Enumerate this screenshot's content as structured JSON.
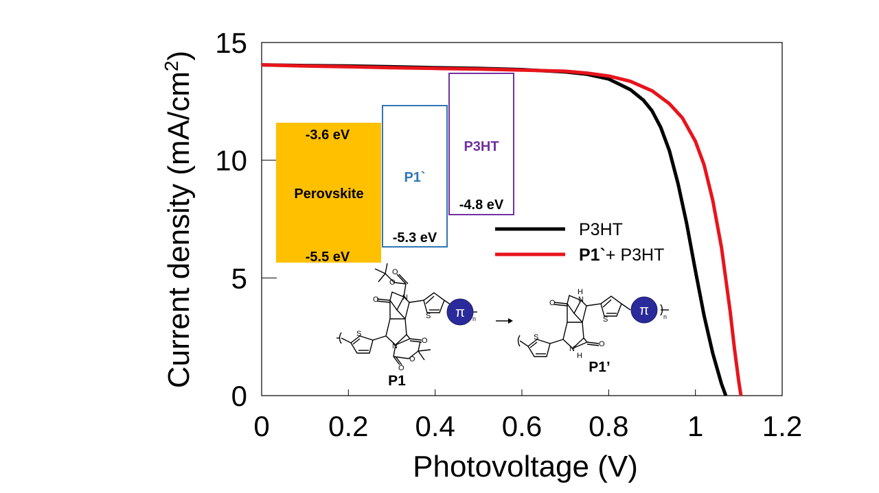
{
  "chart_data": {
    "type": "line",
    "xlabel": "Photovoltage (V)",
    "ylabel_main": "Current density (mA/cm",
    "ylabel_sup": "2",
    "ylabel_close": ")",
    "xlim": [
      0,
      1.2
    ],
    "ylim": [
      0,
      15
    ],
    "x_ticks": [
      0,
      0.2,
      0.4,
      0.6,
      0.8,
      1.0,
      1.2
    ],
    "x_tick_labels": [
      "0",
      "0.2",
      "0.4",
      "0.6",
      "0.8",
      "1",
      "1.2"
    ],
    "y_ticks": [
      0,
      5,
      10,
      15
    ],
    "y_tick_labels": [
      "0",
      "5",
      "10",
      "15"
    ],
    "grid": false,
    "legend_placement": "center-right",
    "series": [
      {
        "name": "P3HT",
        "color": "#000000",
        "x": [
          0,
          0.1,
          0.2,
          0.3,
          0.4,
          0.5,
          0.6,
          0.7,
          0.75,
          0.8,
          0.85,
          0.88,
          0.9,
          0.92,
          0.94,
          0.96,
          0.98,
          1.0,
          1.02,
          1.04,
          1.06,
          1.07
        ],
        "y": [
          14.05,
          14.02,
          14.0,
          13.97,
          13.93,
          13.9,
          13.85,
          13.75,
          13.65,
          13.45,
          13.0,
          12.55,
          12.1,
          11.4,
          10.4,
          9.0,
          7.3,
          5.3,
          3.4,
          1.8,
          0.5,
          0
        ]
      },
      {
        "name_bold": "P1`",
        "name_rest": "+ P3HT",
        "color": "#e8141c",
        "x": [
          0,
          0.1,
          0.2,
          0.3,
          0.4,
          0.5,
          0.6,
          0.7,
          0.75,
          0.8,
          0.85,
          0.9,
          0.94,
          0.97,
          1.0,
          1.02,
          1.04,
          1.06,
          1.08,
          1.09,
          1.1,
          1.105
        ],
        "y": [
          14.05,
          14.0,
          13.97,
          13.93,
          13.9,
          13.87,
          13.83,
          13.78,
          13.7,
          13.58,
          13.35,
          12.95,
          12.4,
          11.8,
          10.8,
          9.8,
          8.3,
          6.3,
          3.6,
          2.0,
          0.6,
          0
        ]
      }
    ]
  },
  "energy_diagram": {
    "perovskite": {
      "name": "Perovskite",
      "top": "-3.6 eV",
      "bottom": "-5.5 eV",
      "color": "#ffc000"
    },
    "p1": {
      "name": "P1`",
      "bottom": "-5.3 eV",
      "color": "#2e75b6"
    },
    "p3ht": {
      "name": "P3HT",
      "bottom": "-4.8 eV",
      "color": "#7030a0"
    }
  },
  "structures": {
    "left_label": "P1",
    "right_label": "P1’",
    "pi_symbol": "π",
    "n_sub": "n",
    "sulfur": "S",
    "nitrogen": "N",
    "oxygen": "O",
    "nh": "H",
    "ring_color": "#2a2a9a"
  }
}
